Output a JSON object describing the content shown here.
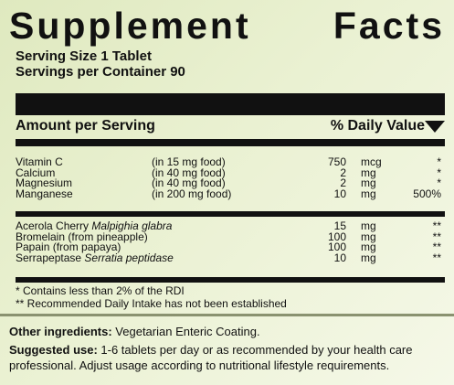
{
  "title": {
    "word1": "Supplement",
    "word2": "Facts"
  },
  "serving": {
    "size": "Serving Size 1 Tablet",
    "per_container": "Servings per Container 90"
  },
  "header": {
    "amount": "Amount per Serving",
    "daily_value": "% Daily Value"
  },
  "nutrients": [
    {
      "name": "Vitamin C",
      "source": "(in 15 mg food)",
      "amount": "750",
      "unit": "mcg",
      "dv": "*"
    },
    {
      "name": "Calcium",
      "source": "(in 40 mg food)",
      "amount": "2",
      "unit": "mg",
      "dv": "*"
    },
    {
      "name": "Magnesium",
      "source": "(in 40 mg food)",
      "amount": "2",
      "mg": "",
      "unit": "mg",
      "dv": "*"
    },
    {
      "name": "Manganese",
      "source": "(in 200 mg food)",
      "amount": "10",
      "unit": "mg",
      "dv": "500%"
    }
  ],
  "enzymes": [
    {
      "name": "Acerola Cherry ",
      "latin": "Malpighia glabra",
      "amount": "15",
      "unit": "mg",
      "dv": "**"
    },
    {
      "name": "Bromelain (from pineapple)",
      "latin": "",
      "amount": "100",
      "unit": "mg",
      "dv": "**"
    },
    {
      "name": "Papain (from papaya)",
      "latin": "",
      "amount": "100",
      "unit": "mg",
      "dv": "**"
    },
    {
      "name": "Serrapeptase ",
      "latin": "Serratia peptidase",
      "amount": "10",
      "unit": "mg",
      "dv": "**"
    }
  ],
  "footnotes": [
    "*   Contains less than 2% of the RDI",
    "** Recommended Daily Intake has not been established"
  ],
  "other": {
    "label": "Other ingredients:",
    "text": " Vegetarian Enteric Coating."
  },
  "use": {
    "label": "Suggested use:",
    "text": " 1-6 tablets per day or as recommended by your health care",
    "text2": "professional.  Adjust usage according to nutritional lifestyle requirements."
  },
  "colors": {
    "background": "#e4edc8",
    "ink": "#111111",
    "divider": "#8a9270"
  }
}
